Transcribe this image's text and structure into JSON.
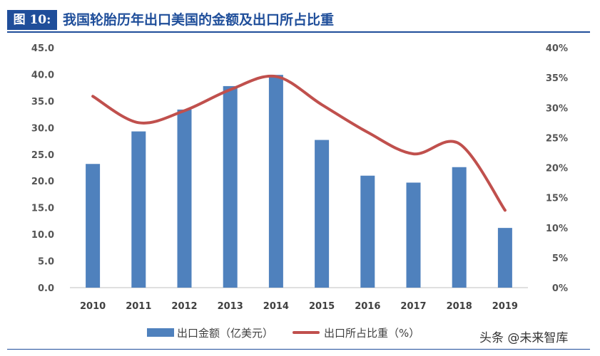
{
  "header": {
    "figure_label": "图 10:",
    "title": "我国轮胎历年出口美国的金额及出口所占比重"
  },
  "watermark": "头条 @未来智库",
  "colors": {
    "bar": "#4f81bd",
    "line": "#c0504d",
    "accent": "#1f4e9a"
  },
  "chart_data": {
    "type": "bar",
    "categories": [
      "2010",
      "2011",
      "2012",
      "2013",
      "2014",
      "2015",
      "2016",
      "2017",
      "2018",
      "2019"
    ],
    "series": [
      {
        "name": "出口金额（亿美元）",
        "type": "bar",
        "axis": "left",
        "values": [
          23.2,
          29.3,
          33.4,
          37.8,
          39.9,
          27.7,
          21.0,
          19.7,
          22.6,
          11.2
        ]
      },
      {
        "name": "出口所占比重（%）",
        "type": "line",
        "axis": "right",
        "values": [
          31.9,
          27.5,
          29.5,
          33.0,
          35.2,
          30.5,
          25.9,
          22.3,
          24.0,
          12.9
        ]
      }
    ],
    "left_axis": {
      "ylim": [
        0,
        45
      ],
      "ticks": [
        "0.0",
        "5.0",
        "10.0",
        "15.0",
        "20.0",
        "25.0",
        "30.0",
        "35.0",
        "40.0",
        "45.0"
      ]
    },
    "right_axis": {
      "ylim": [
        0,
        40
      ],
      "ticks": [
        "0%",
        "5%",
        "10%",
        "15%",
        "20%",
        "25%",
        "30%",
        "35%",
        "40%"
      ]
    },
    "grid": false,
    "legend_position": "bottom"
  }
}
